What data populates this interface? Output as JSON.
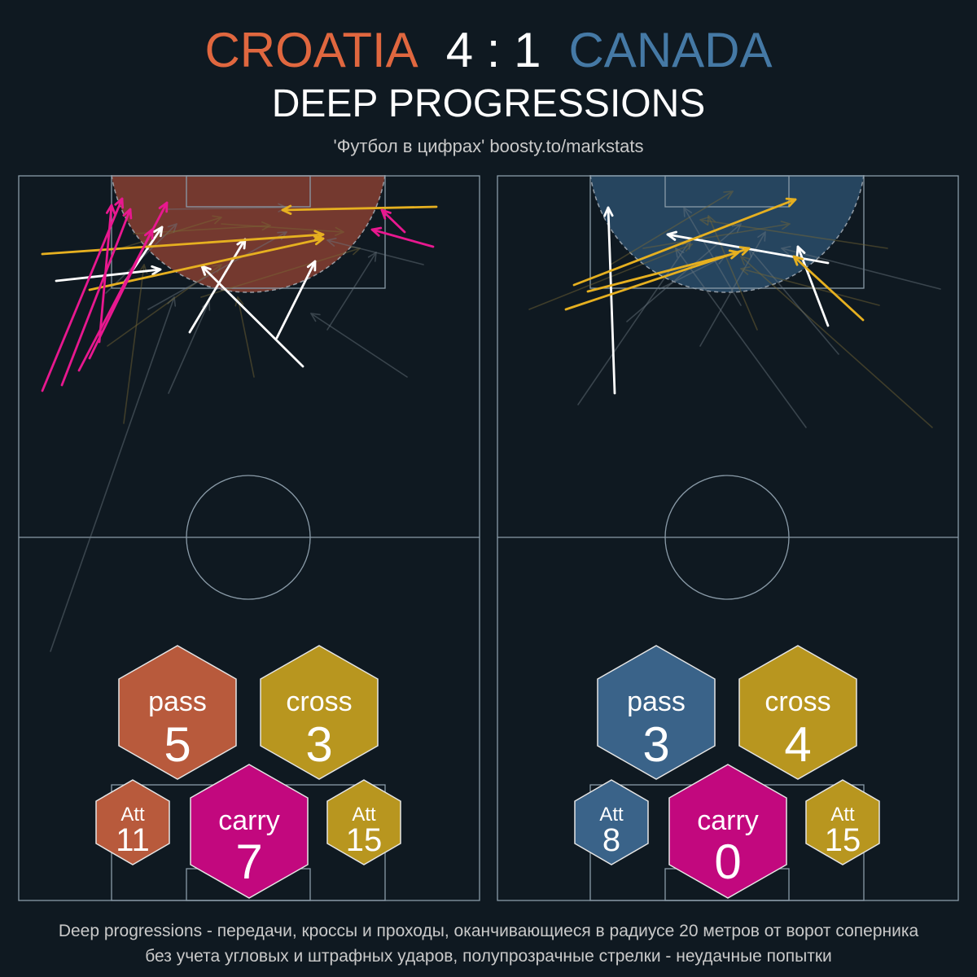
{
  "header": {
    "home_team": "CROATIA",
    "score": "4 : 1",
    "away_team": "CANADA",
    "title": "DEEP PROGRESSIONS",
    "credit": "'Футбол в цифрах' boosty.to/markstats"
  },
  "footer": {
    "line1": "Deep progressions - передачи, кроссы и проходы, оканчивающиеся в радиусе 20 метров от ворот соперника",
    "line2": "без учета угловых и штрафных ударов, полупрозрачные стрелки - неудачные попытки"
  },
  "colors": {
    "background": "#0f1921",
    "home": "#e0673f",
    "home_zone": "#7a3b30",
    "home_hex": "#b85a3c",
    "away": "#4579a5",
    "away_zone": "#294a66",
    "away_hex": "#3a6389",
    "cross": "#b8961f",
    "cross_arrow": "#e6b020",
    "carry": "#c2087e",
    "carry_arrow": "#e8188f",
    "pass_arrow": "#ffffff",
    "pitch_lines": "#8a9ba8"
  },
  "chart_data": [
    {
      "type": "arrow-map",
      "team": "CROATIA",
      "stats": {
        "pass": {
          "label": "pass",
          "value": 5
        },
        "cross": {
          "label": "cross",
          "value": 3
        },
        "carry": {
          "label": "carry",
          "value": 7
        },
        "pass_attempts": {
          "label": "Att",
          "value": 11
        },
        "cross_attempts": {
          "label": "Att",
          "value": 15
        }
      },
      "successful": {
        "pass": [
          [
            47,
            130,
            175,
            116
          ],
          [
            130,
            133,
            177,
            64
          ],
          [
            211,
            193,
            279,
            79
          ],
          [
            318,
            200,
            365,
            106
          ],
          [
            350,
            235,
            226,
            112
          ]
        ],
        "cross": [
          [
            30,
            97,
            375,
            73
          ],
          [
            88,
            141,
            375,
            78
          ],
          [
            514,
            39,
            325,
            43
          ]
        ],
        "carry": [
          [
            30,
            265,
            128,
            29
          ],
          [
            54,
            258,
            138,
            42
          ],
          [
            75,
            240,
            183,
            34
          ],
          [
            88,
            225,
            165,
            67
          ],
          [
            100,
            205,
            115,
            37
          ],
          [
            510,
            88,
            435,
            67
          ],
          [
            475,
            70,
            447,
            43
          ]
        ]
      },
      "failed": [
        [
          40,
          585,
          192,
          150
        ],
        [
          130,
          305,
          155,
          110
        ],
        [
          185,
          268,
          235,
          155
        ],
        [
          290,
          248,
          270,
          150
        ],
        [
          478,
          248,
          360,
          170
        ],
        [
          110,
          210,
          250,
          110
        ],
        [
          108,
          145,
          195,
          60
        ],
        [
          120,
          92,
          250,
          52
        ],
        [
          160,
          165,
          330,
          70
        ],
        [
          225,
          150,
          420,
          90
        ],
        [
          498,
          110,
          380,
          80
        ],
        [
          250,
          60,
          400,
          70
        ],
        [
          182,
          42,
          330,
          40
        ],
        [
          142,
          72,
          310,
          62
        ],
        [
          380,
          190,
          440,
          95
        ]
      ]
    },
    {
      "type": "arrow-map",
      "team": "CANADA",
      "stats": {
        "pass": {
          "label": "pass",
          "value": 3
        },
        "cross": {
          "label": "cross",
          "value": 4
        },
        "carry": {
          "label": "carry",
          "value": 0
        },
        "pass_attempts": {
          "label": "Att",
          "value": 8
        },
        "cross_attempts": {
          "label": "Att",
          "value": 15
        }
      },
      "successful": {
        "pass": [
          [
            145,
            268,
            137,
            40
          ],
          [
            407,
            108,
            210,
            73
          ],
          [
            407,
            185,
            370,
            88
          ]
        ],
        "cross": [
          [
            95,
            135,
            367,
            30
          ],
          [
            85,
            165,
            310,
            90
          ],
          [
            450,
            178,
            365,
            100
          ],
          [
            112,
            143,
            297,
            95
          ]
        ],
        "carry": []
      },
      "failed": [
        [
          100,
          282,
          238,
          80
        ],
        [
          535,
          310,
          300,
          100
        ],
        [
          380,
          310,
          220,
          90
        ],
        [
          40,
          165,
          240,
          85
        ],
        [
          545,
          140,
          350,
          90
        ],
        [
          480,
          90,
          250,
          55
        ],
        [
          160,
          180,
          300,
          60
        ],
        [
          140,
          110,
          290,
          20
        ],
        [
          250,
          210,
          330,
          70
        ],
        [
          320,
          190,
          260,
          50
        ],
        [
          420,
          220,
          310,
          90
        ],
        [
          180,
          90,
          360,
          60
        ],
        [
          200,
          140,
          280,
          100
        ],
        [
          470,
          160,
          300,
          115
        ],
        [
          300,
          160,
          230,
          40
        ]
      ]
    }
  ]
}
